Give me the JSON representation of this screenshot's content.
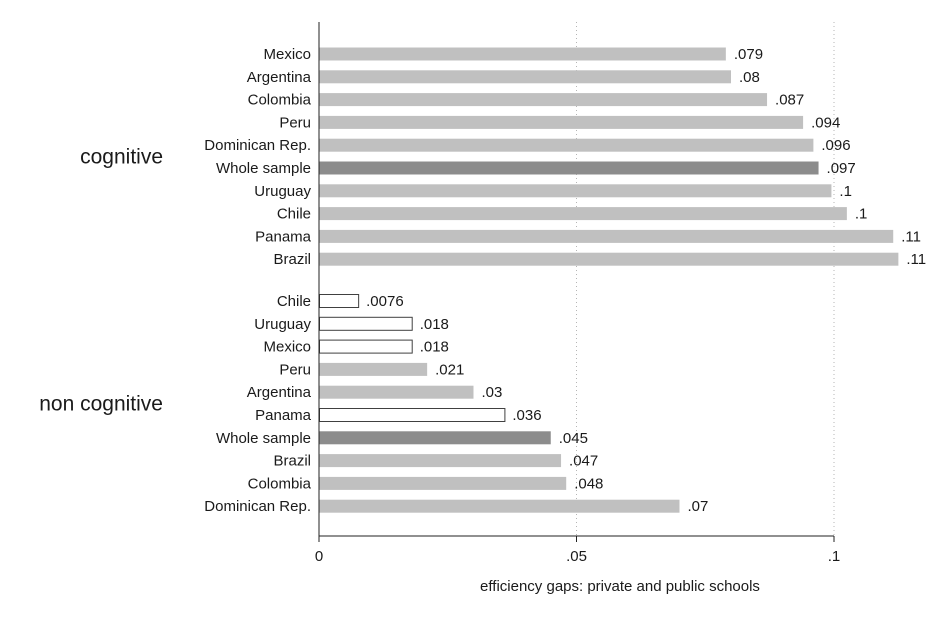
{
  "chart_data": {
    "type": "bar",
    "orientation": "horizontal",
    "xlabel": "efficiency gaps: private and public schools",
    "xlim": [
      0,
      0.1
    ],
    "xticks": [
      {
        "value": 0,
        "label": "0"
      },
      {
        "value": 0.05,
        "label": ".05"
      },
      {
        "value": 0.1,
        "label": ".1"
      }
    ],
    "grid": "vertical dotted",
    "colors": {
      "light": "#c0c0c0",
      "whole_sample": "#8c8c8c",
      "hollow_fill": "#ffffff",
      "hollow_stroke": "#404040"
    },
    "groups": [
      {
        "name": "cognitive",
        "bars": [
          {
            "category": "Mexico",
            "value": 0.079,
            "label": ".079",
            "style": "light"
          },
          {
            "category": "Argentina",
            "value": 0.08,
            "label": ".08",
            "style": "light"
          },
          {
            "category": "Colombia",
            "value": 0.087,
            "label": ".087",
            "style": "light"
          },
          {
            "category": "Peru",
            "value": 0.094,
            "label": ".094",
            "style": "light"
          },
          {
            "category": "Dominican Rep.",
            "value": 0.096,
            "label": ".096",
            "style": "light"
          },
          {
            "category": "Whole sample",
            "value": 0.097,
            "label": ".097",
            "style": "whole_sample"
          },
          {
            "category": "Uruguay",
            "value": 0.0995,
            "label": ".1",
            "style": "light"
          },
          {
            "category": "Chile",
            "value": 0.1025,
            "label": ".1",
            "style": "light"
          },
          {
            "category": "Panama",
            "value": 0.1115,
            "label": ".11",
            "style": "light"
          },
          {
            "category": "Brazil",
            "value": 0.1125,
            "label": ".11",
            "style": "light"
          }
        ]
      },
      {
        "name": "non cognitive",
        "bars": [
          {
            "category": "Chile",
            "value": 0.0076,
            "label": ".0076",
            "style": "hollow"
          },
          {
            "category": "Uruguay",
            "value": 0.018,
            "label": ".018",
            "style": "hollow"
          },
          {
            "category": "Mexico",
            "value": 0.018,
            "label": ".018",
            "style": "hollow"
          },
          {
            "category": "Peru",
            "value": 0.021,
            "label": ".021",
            "style": "light"
          },
          {
            "category": "Argentina",
            "value": 0.03,
            "label": ".03",
            "style": "light"
          },
          {
            "category": "Panama",
            "value": 0.036,
            "label": ".036",
            "style": "hollow"
          },
          {
            "category": "Whole sample",
            "value": 0.045,
            "label": ".045",
            "style": "whole_sample"
          },
          {
            "category": "Brazil",
            "value": 0.047,
            "label": ".047",
            "style": "light"
          },
          {
            "category": "Colombia",
            "value": 0.048,
            "label": ".048",
            "style": "light"
          },
          {
            "category": "Dominican Rep.",
            "value": 0.07,
            "label": ".07",
            "style": "light"
          }
        ]
      }
    ]
  }
}
